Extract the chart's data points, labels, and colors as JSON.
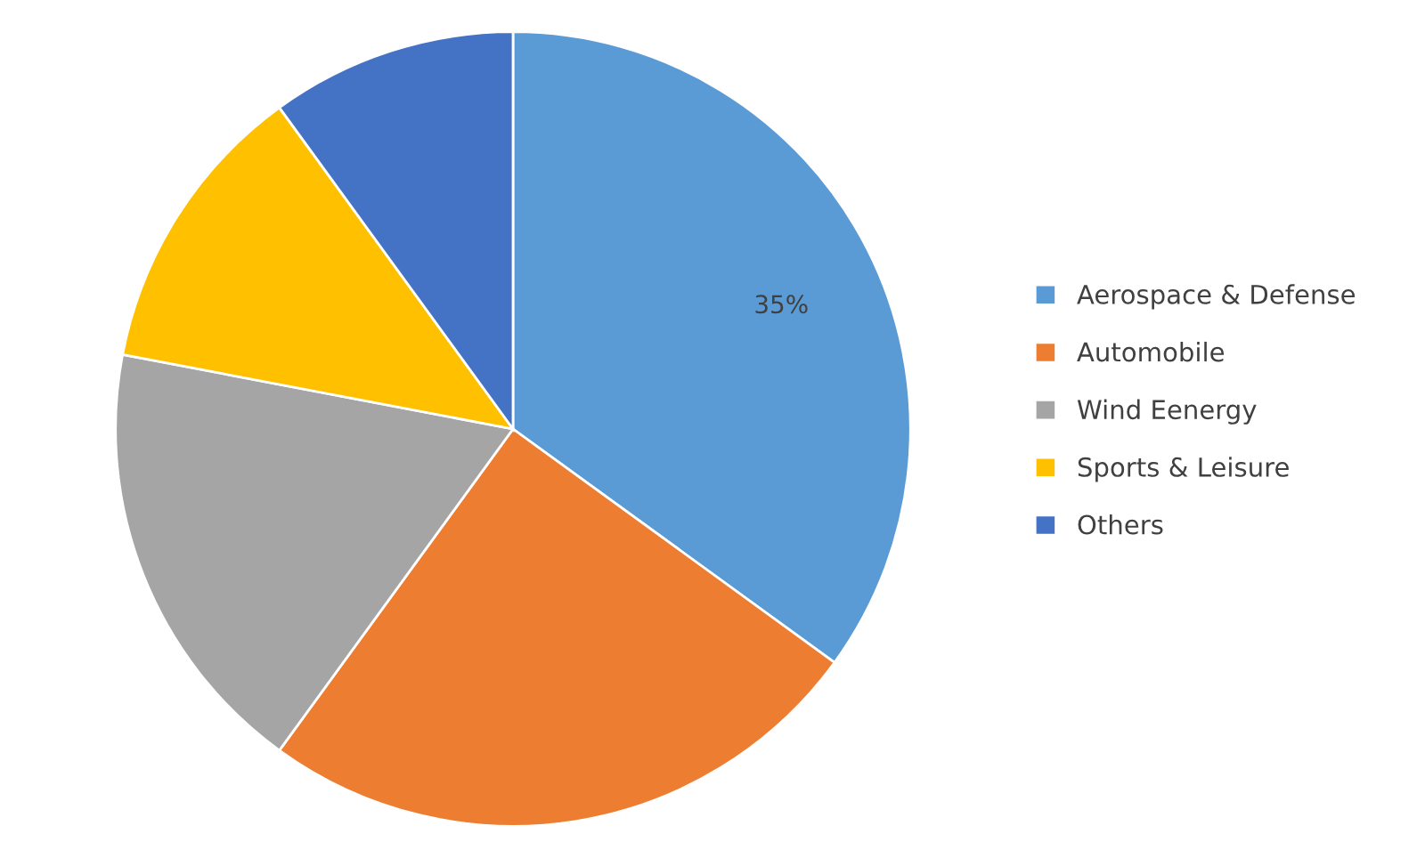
{
  "chart_data": {
    "type": "pie",
    "categories": [
      "Aerospace & Defense",
      "Automobile",
      "Wind Eenergy",
      "Sports & Leisure",
      "Others"
    ],
    "values": [
      35,
      25,
      18,
      12,
      10
    ],
    "colors": [
      "#5b9bd5",
      "#ed7d31",
      "#a5a5a5",
      "#ffc000",
      "#4472c4"
    ],
    "value_labels": [
      "35%",
      null,
      null,
      null,
      null
    ],
    "legend": "right"
  }
}
